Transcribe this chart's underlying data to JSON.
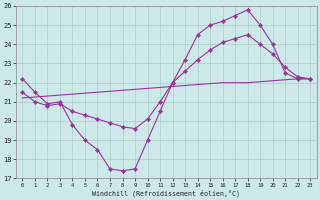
{
  "xlabel": "Windchill (Refroidissement éolien,°C)",
  "bg_color": "#cde8e8",
  "line_color": "#993399",
  "grid_color": "#aacccc",
  "xlim": [
    -0.5,
    23.5
  ],
  "ylim": [
    17,
    26
  ],
  "yticks": [
    17,
    18,
    19,
    20,
    21,
    22,
    23,
    24,
    25,
    26
  ],
  "xticks": [
    0,
    1,
    2,
    3,
    4,
    5,
    6,
    7,
    8,
    9,
    10,
    11,
    12,
    13,
    14,
    15,
    16,
    17,
    18,
    19,
    20,
    21,
    22,
    23
  ],
  "line1_x": [
    0,
    1,
    2,
    3,
    4,
    5,
    6,
    7,
    8,
    9,
    10,
    11,
    12,
    13,
    14,
    15,
    16,
    17,
    18,
    19,
    20,
    21,
    22,
    23
  ],
  "line1_y": [
    22.2,
    21.5,
    20.9,
    21.0,
    19.8,
    19.0,
    18.5,
    17.5,
    17.4,
    17.5,
    19.0,
    20.5,
    22.0,
    23.2,
    24.5,
    25.0,
    25.2,
    25.5,
    25.8,
    25.0,
    24.0,
    22.5,
    22.2,
    22.2
  ],
  "line2_x": [
    0,
    1,
    2,
    3,
    4,
    5,
    6,
    7,
    8,
    9,
    10,
    11,
    12,
    13,
    14,
    15,
    16,
    17,
    18,
    19,
    20,
    21,
    22,
    23
  ],
  "line2_y": [
    21.5,
    21.0,
    20.8,
    20.9,
    20.5,
    20.3,
    20.1,
    19.9,
    19.7,
    19.6,
    20.1,
    21.0,
    22.0,
    22.6,
    23.2,
    23.7,
    24.1,
    24.3,
    24.5,
    24.0,
    23.5,
    22.8,
    22.3,
    22.2
  ],
  "line3_x": [
    0,
    1,
    2,
    3,
    4,
    5,
    6,
    7,
    8,
    9,
    10,
    11,
    12,
    13,
    14,
    15,
    16,
    17,
    18,
    19,
    20,
    21,
    22,
    23
  ],
  "line3_y": [
    21.2,
    21.25,
    21.3,
    21.35,
    21.4,
    21.45,
    21.5,
    21.55,
    21.6,
    21.65,
    21.7,
    21.75,
    21.8,
    21.85,
    21.9,
    21.95,
    22.0,
    22.0,
    22.0,
    22.05,
    22.1,
    22.15,
    22.2,
    22.2
  ]
}
